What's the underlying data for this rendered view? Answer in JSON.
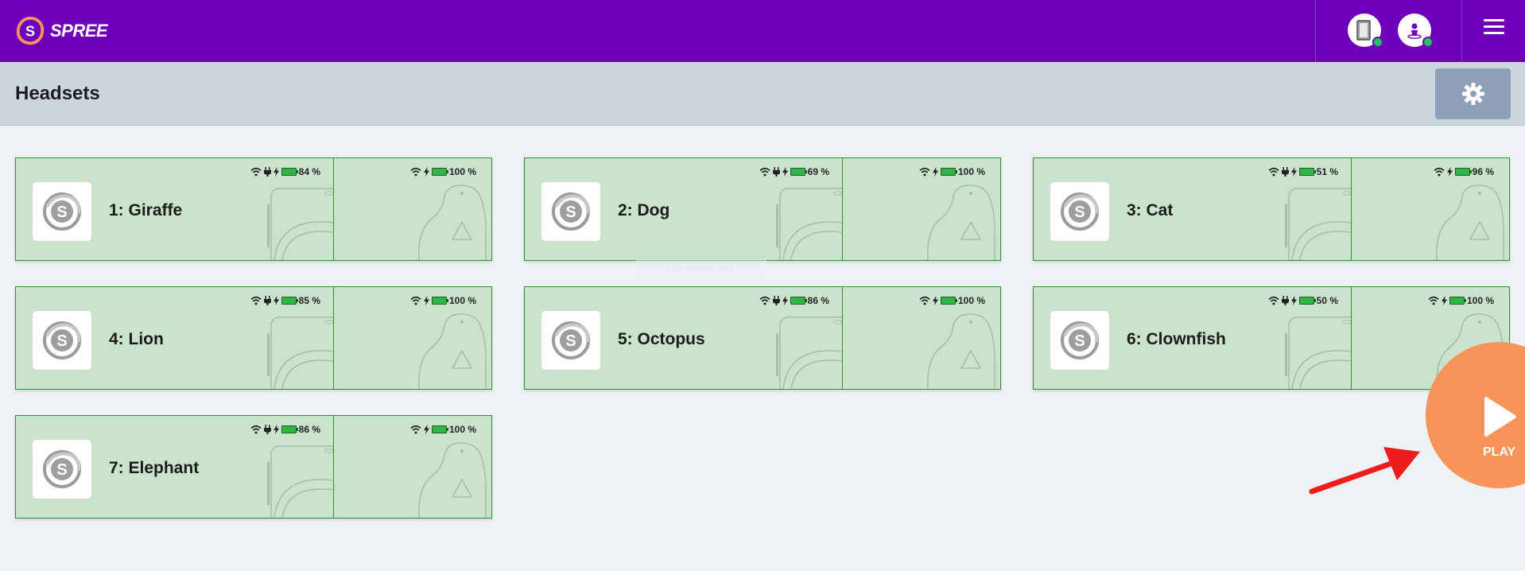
{
  "app": {
    "brand": "SPREE"
  },
  "header": {
    "icons": [
      "tablet-icon",
      "user-icon",
      "menu-icon"
    ],
    "status_color": "#22c55e"
  },
  "page": {
    "title": "Headsets"
  },
  "colors": {
    "topbar": "#6e00b9",
    "card_bg": "#cbe3cc",
    "card_border": "#2e8f35",
    "play": "#f7945a"
  },
  "headsets": [
    {
      "name": "1: Giraffe",
      "headset_battery": "84 %",
      "controller_battery": "100 %"
    },
    {
      "name": "2: Dog",
      "headset_battery": "69 %",
      "controller_battery": "100 %"
    },
    {
      "name": "3: Cat",
      "headset_battery": "51 %",
      "controller_battery": "96 %"
    },
    {
      "name": "4: Lion",
      "headset_battery": "85 %",
      "controller_battery": "100 %"
    },
    {
      "name": "5: Octopus",
      "headset_battery": "86 %",
      "controller_battery": "100 %"
    },
    {
      "name": "6: Clownfish",
      "headset_battery": "50 %",
      "controller_battery": "100 %"
    },
    {
      "name": "7: Elephant",
      "headset_battery": "86 %",
      "controller_battery": "100 %"
    }
  ],
  "overlay": {
    "snip_hint": "Full screen Snip"
  },
  "play": {
    "label": "PLAY"
  }
}
